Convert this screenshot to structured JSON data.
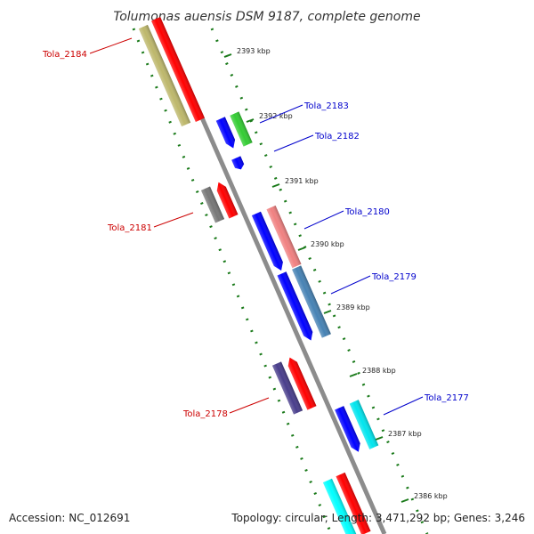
{
  "title": "Tolumonas auensis DSM 9187, complete genome",
  "footer": {
    "accession": "Accession: NC_012691",
    "summary": "Topology: circular; Length: 3,471,292 bp; Genes: 3,246"
  },
  "kbp_marks": [
    {
      "kbp": 2393,
      "label": "2393 kbp"
    },
    {
      "kbp": 2392,
      "label": "2392 kbp"
    },
    {
      "kbp": 2391,
      "label": "2391 kbp"
    },
    {
      "kbp": 2390,
      "label": "2390 kbp"
    },
    {
      "kbp": 2389,
      "label": "2389 kbp"
    },
    {
      "kbp": 2388,
      "label": "2388 kbp"
    },
    {
      "kbp": 2387,
      "label": "2387 kbp"
    },
    {
      "kbp": 2386,
      "label": "2386 kbp"
    }
  ],
  "genes": [
    {
      "name": "Tola_2184",
      "strand": "reverse",
      "color": "#ff0000"
    },
    {
      "name": "Tola_2183",
      "strand": "forward",
      "color": "#33cc33"
    },
    {
      "name": "Tola_2182",
      "strand": "forward",
      "color": "#0000ff"
    },
    {
      "name": "Tola_2181",
      "strand": "reverse",
      "color": "#ff0000"
    },
    {
      "name": "Tola_2180",
      "strand": "forward",
      "color": "#f08080"
    },
    {
      "name": "Tola_2179",
      "strand": "forward",
      "color": "#4682b4"
    },
    {
      "name": "Tola_2178",
      "strand": "reverse",
      "color": "#ff0000"
    },
    {
      "name": "Tola_2177",
      "strand": "forward",
      "color": "#00e5ee"
    }
  ],
  "colors": {
    "backbone": "#8c8c8c",
    "gc_ticks": "#1a7a1a",
    "label_reverse": "#cc0000",
    "label_forward": "#0000cc",
    "cds_reverse_track": "#ff0000",
    "cds_forward_track": "#0000ff",
    "cog_olive": "#bdb76b",
    "cog_gray": "#777777",
    "cog_purple": "#483d8b",
    "cog_cyan": "#00ffff"
  }
}
